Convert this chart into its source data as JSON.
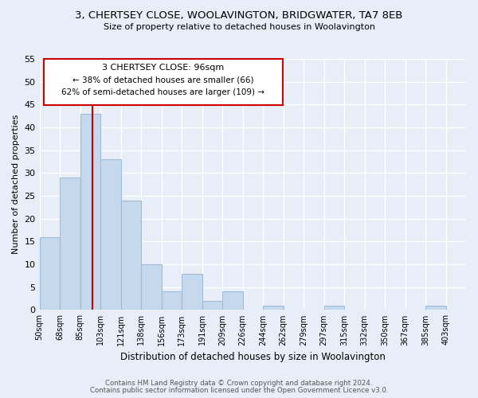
{
  "title": "3, CHERTSEY CLOSE, WOOLAVINGTON, BRIDGWATER, TA7 8EB",
  "subtitle": "Size of property relative to detached houses in Woolavington",
  "xlabel": "Distribution of detached houses by size in Woolavington",
  "ylabel": "Number of detached properties",
  "bar_labels": [
    "50sqm",
    "68sqm",
    "85sqm",
    "103sqm",
    "121sqm",
    "138sqm",
    "156sqm",
    "173sqm",
    "191sqm",
    "209sqm",
    "226sqm",
    "244sqm",
    "262sqm",
    "279sqm",
    "297sqm",
    "315sqm",
    "332sqm",
    "350sqm",
    "367sqm",
    "385sqm",
    "403sqm"
  ],
  "bar_values": [
    16,
    29,
    43,
    33,
    24,
    10,
    4,
    8,
    2,
    4,
    0,
    1,
    0,
    0,
    1,
    0,
    0,
    0,
    0,
    1,
    0
  ],
  "bar_color": "#c5d8ec",
  "bar_edge_color": "#a0bcd8",
  "vline_color": "#cc0000",
  "ylim": [
    0,
    55
  ],
  "yticks": [
    0,
    5,
    10,
    15,
    20,
    25,
    30,
    35,
    40,
    45,
    50,
    55
  ],
  "annotation_title": "3 CHERTSEY CLOSE: 96sqm",
  "annotation_line1": "← 38% of detached houses are smaller (66)",
  "annotation_line2": "62% of semi-detached houses are larger (109) →",
  "annotation_box_color": "#ffffff",
  "annotation_box_edge": "#cc0000",
  "footer_line1": "Contains HM Land Registry data © Crown copyright and database right 2024.",
  "footer_line2": "Contains public sector information licensed under the Open Government Licence v3.0.",
  "fig_background": "#e8eef8",
  "plot_background": "#e8eef8",
  "grid_color": "#ffffff"
}
